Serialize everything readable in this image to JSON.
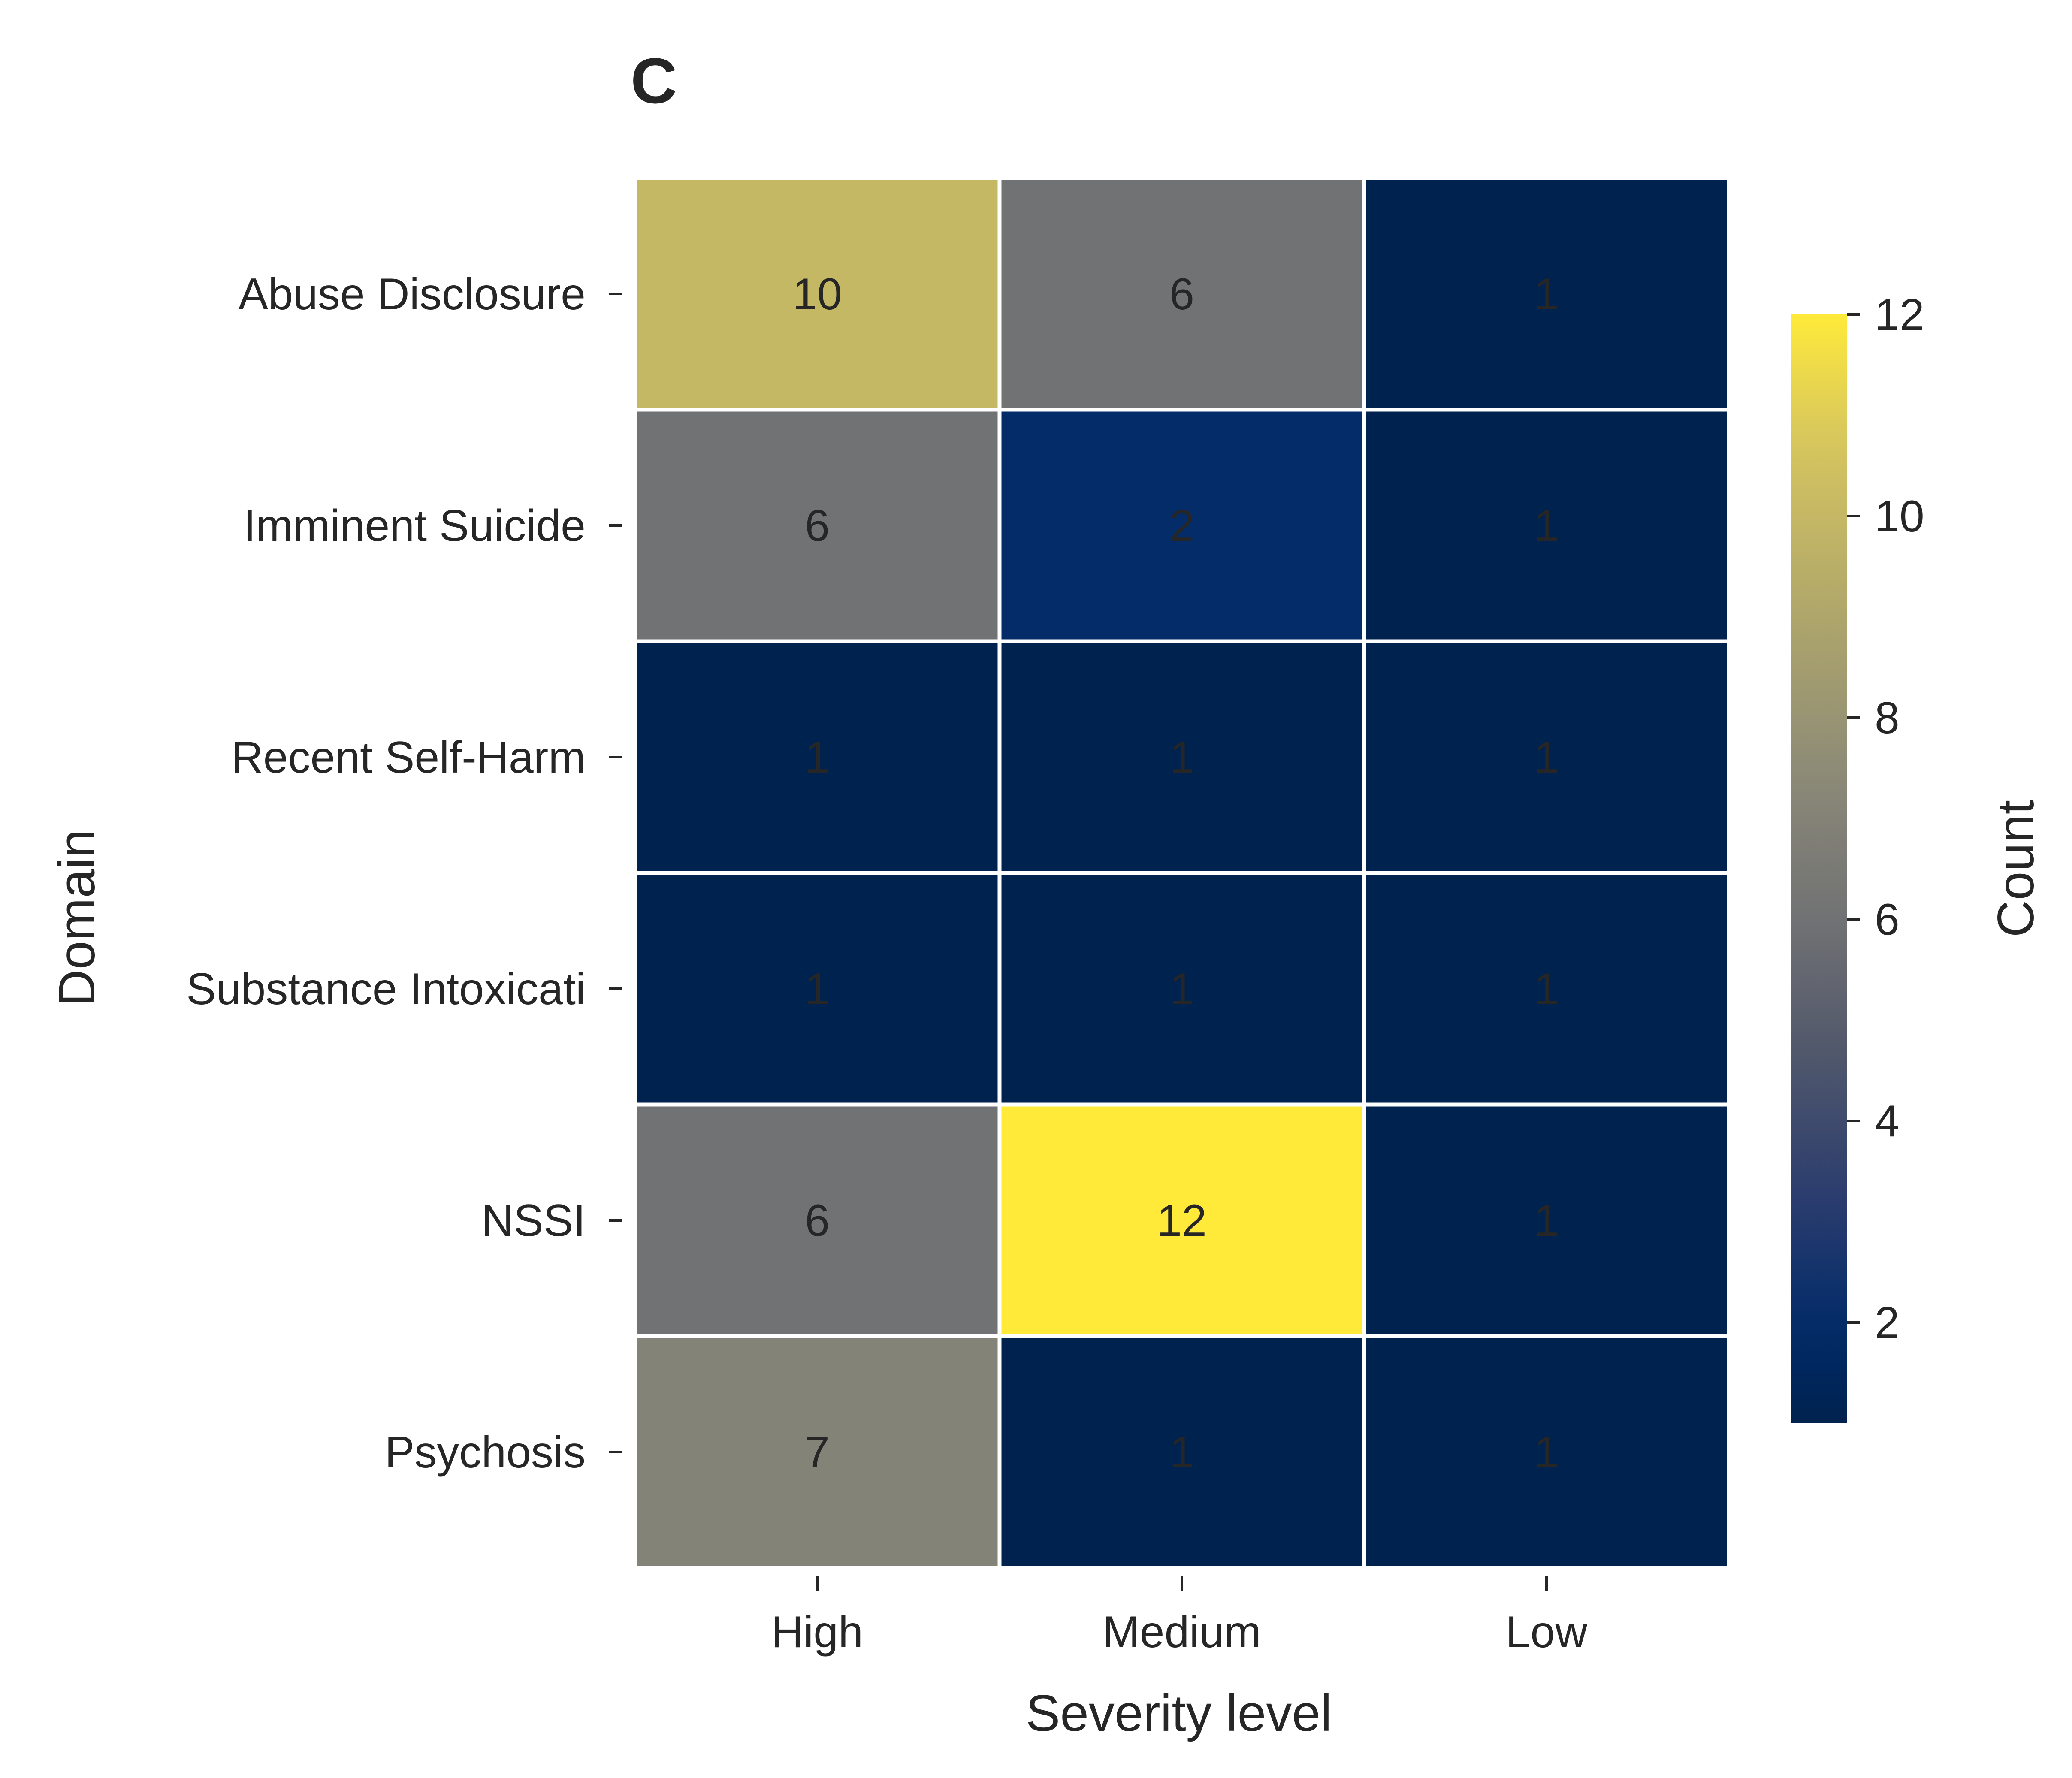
{
  "panel_label": "C",
  "chart_data": {
    "type": "heatmap",
    "title": "",
    "xlabel": "Severity level",
    "ylabel": "Domain",
    "x_categories": [
      "High",
      "Medium",
      "Low"
    ],
    "y_categories": [
      "Abuse Disclosure",
      "Imminent Suicide",
      "Recent Self-Harm",
      "Substance Intoxicati",
      "NSSI",
      "Psychosis"
    ],
    "values": [
      [
        10,
        6,
        1
      ],
      [
        6,
        2,
        1
      ],
      [
        1,
        1,
        1
      ],
      [
        1,
        1,
        1
      ],
      [
        6,
        12,
        1
      ],
      [
        7,
        1,
        1
      ]
    ],
    "colorbar": {
      "label": "Count",
      "vmin": 1,
      "vmax": 12,
      "ticks": [
        2,
        4,
        6,
        8,
        10,
        12
      ],
      "colormap": "cividis"
    },
    "annotation_color": "#262626",
    "grid_line_color": "#ffffff"
  }
}
